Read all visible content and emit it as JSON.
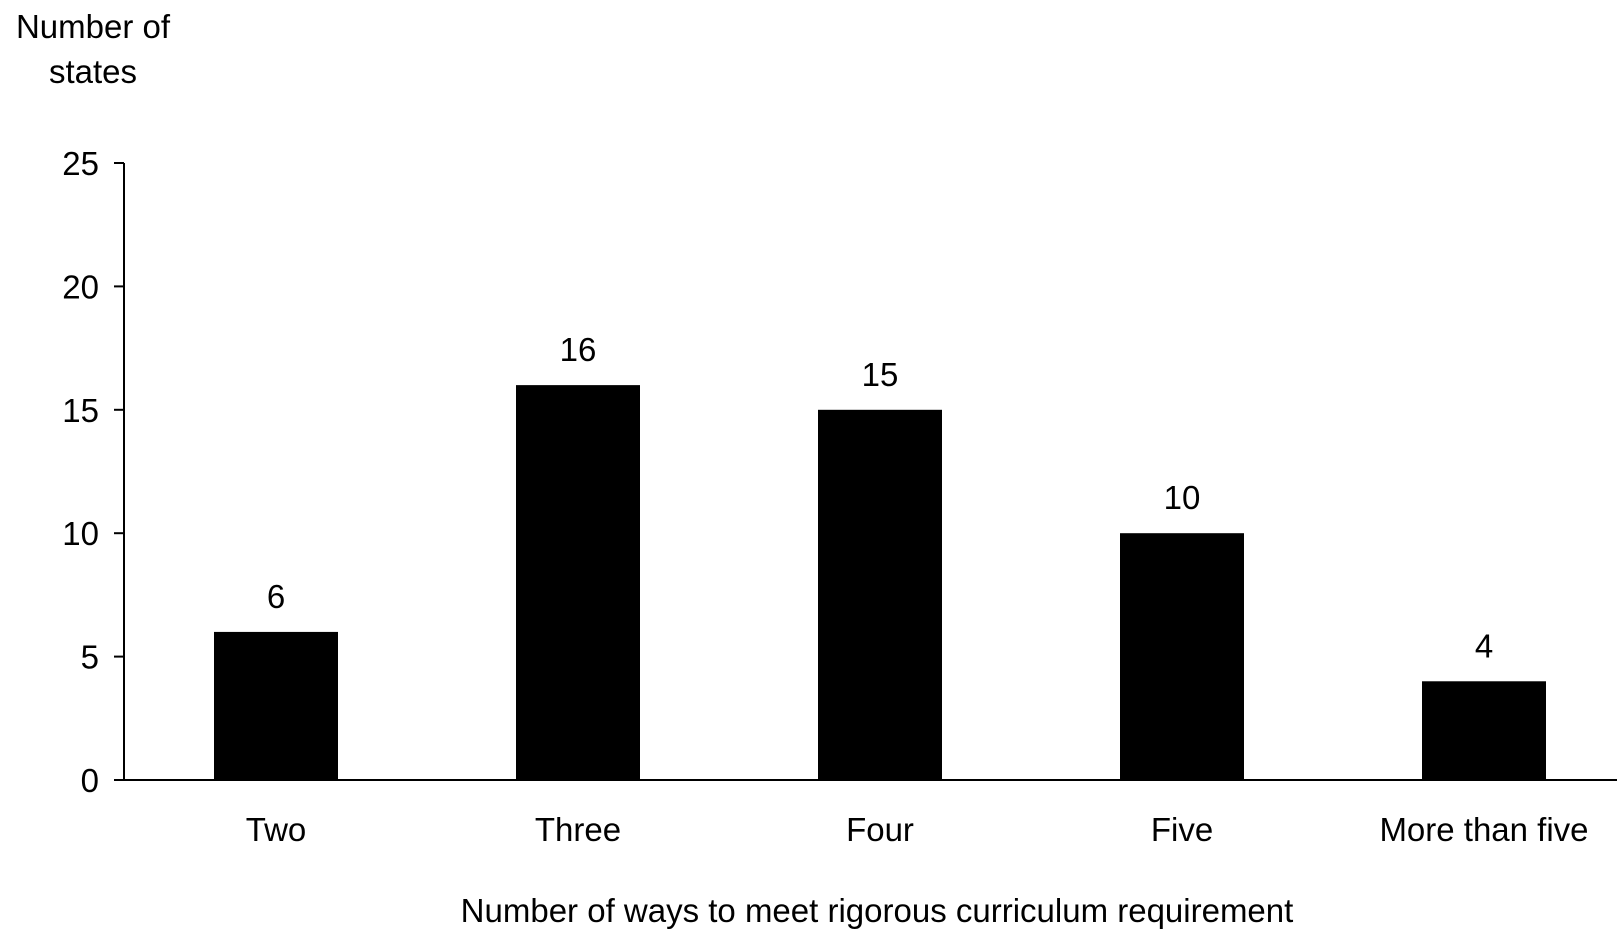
{
  "chart_data": {
    "type": "bar",
    "ylabel_lines": [
      "Number of",
      "states"
    ],
    "xlabel": "Number of ways to meet rigorous curriculum requirement",
    "categories": [
      "Two",
      "Three",
      "Four",
      "Five",
      "More than five"
    ],
    "values": [
      6,
      16,
      15,
      10,
      4
    ],
    "data_labels": [
      "6",
      "16",
      "15",
      "10",
      "4"
    ],
    "ylim": [
      0,
      25
    ],
    "yticks": [
      0,
      5,
      10,
      15,
      20,
      25
    ],
    "grid": false,
    "legend": "none",
    "bar_color": "#000000"
  }
}
